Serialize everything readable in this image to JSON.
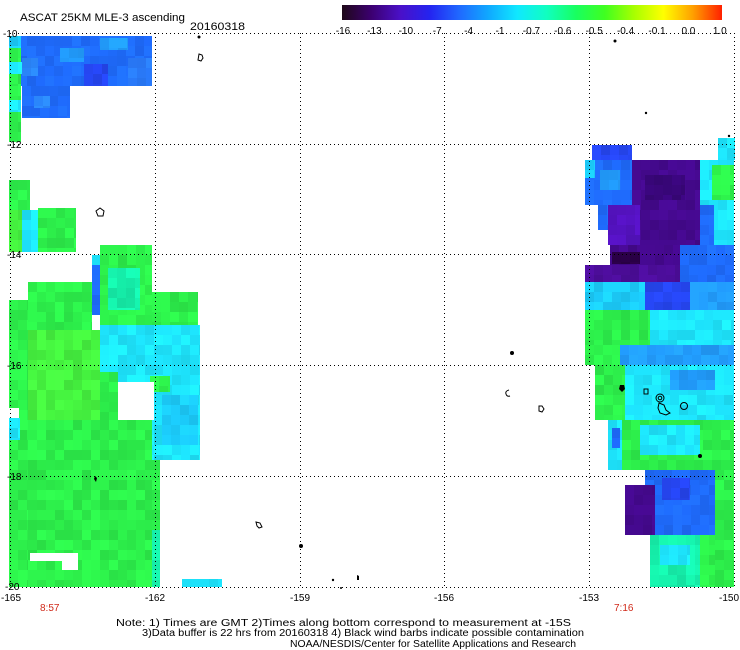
{
  "header": {
    "title": "ASCAT 25KM MLE-3 ascending",
    "date": "20160318"
  },
  "colorbar": {
    "labels": [
      "-16",
      "-13",
      "-10",
      "-7",
      "-4",
      "-1",
      "-0.7",
      "-0.6",
      "-0.5",
      "-0.4",
      "-0.1",
      "0.0",
      "1.0"
    ],
    "colors": [
      "#1e0818",
      "#3c0070",
      "#4a10c8",
      "#2424f0",
      "#2068ff",
      "#10a8ff",
      "#10e8ff",
      "#10ffc0",
      "#18ff60",
      "#40ff20",
      "#a8ff00",
      "#ffff00",
      "#ffa000",
      "#ff2000"
    ]
  },
  "axes": {
    "lat_ticks": [
      "-10",
      "-12",
      "-14",
      "-16",
      "-18",
      "-20"
    ],
    "lon_ticks": [
      "-165",
      "-162",
      "-159",
      "-156",
      "-153",
      "-150"
    ]
  },
  "pass_times": [
    "8:57",
    "7:16"
  ],
  "notes": [
    "Note: 1) Times are GMT 2)Times along bottom correspond to measurement at -15S",
    "3)Data buffer is 22 hrs from 20160318 4) Black wind barbs indicate possible contamination",
    "NOAA/NESDIS/Center for Satellite Applications and Research"
  ],
  "colors": {
    "time_label": "#d02818"
  }
}
